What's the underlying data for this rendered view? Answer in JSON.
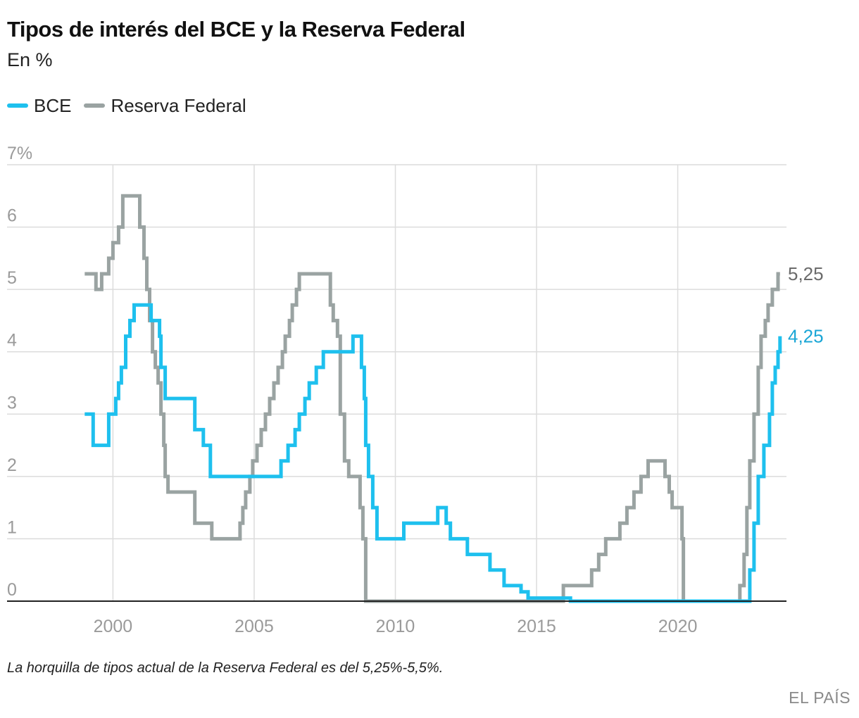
{
  "header": {
    "title": "Tipos de interés del BCE y la Reserva Federal",
    "subtitle": "En %"
  },
  "legend": [
    {
      "label": "BCE",
      "color": "#1ec0ee"
    },
    {
      "label": "Reserva Federal",
      "color": "#9aa3a2"
    }
  ],
  "chart_data": {
    "type": "line",
    "step": true,
    "title": "Tipos de interés del BCE y la Reserva Federal",
    "subtitle": "En %",
    "xlim": [
      1996.25,
      2023.85
    ],
    "ylim": [
      0,
      7
    ],
    "x_ticks": [
      "2000",
      "2005",
      "2010",
      "2015",
      "2020"
    ],
    "x_tick_values": [
      2000,
      2005,
      2010,
      2015,
      2020
    ],
    "y_ticks": [
      "0",
      "1",
      "2",
      "3",
      "4",
      "5",
      "6",
      "7%"
    ],
    "y_tick_values": [
      0,
      1,
      2,
      3,
      4,
      5,
      6,
      7
    ],
    "series": [
      {
        "name": "Reserva Federal",
        "color": "#9aa3a2",
        "end_label": "5,25",
        "label_color": "#6b6b6b",
        "points": [
          [
            1999.0,
            5.25
          ],
          [
            1999.4,
            5.0
          ],
          [
            1999.6,
            5.25
          ],
          [
            1999.85,
            5.5
          ],
          [
            2000.0,
            5.75
          ],
          [
            2000.2,
            6.0
          ],
          [
            2000.35,
            6.5
          ],
          [
            2000.95,
            6.0
          ],
          [
            2001.1,
            5.5
          ],
          [
            2001.2,
            5.0
          ],
          [
            2001.3,
            4.5
          ],
          [
            2001.4,
            4.0
          ],
          [
            2001.5,
            3.75
          ],
          [
            2001.6,
            3.5
          ],
          [
            2001.7,
            3.0
          ],
          [
            2001.8,
            2.5
          ],
          [
            2001.85,
            2.0
          ],
          [
            2001.95,
            1.75
          ],
          [
            2002.9,
            1.25
          ],
          [
            2003.5,
            1.0
          ],
          [
            2004.5,
            1.25
          ],
          [
            2004.6,
            1.5
          ],
          [
            2004.7,
            1.75
          ],
          [
            2004.85,
            2.0
          ],
          [
            2004.95,
            2.25
          ],
          [
            2005.1,
            2.5
          ],
          [
            2005.25,
            2.75
          ],
          [
            2005.4,
            3.0
          ],
          [
            2005.55,
            3.25
          ],
          [
            2005.7,
            3.5
          ],
          [
            2005.85,
            3.75
          ],
          [
            2006.0,
            4.0
          ],
          [
            2006.1,
            4.25
          ],
          [
            2006.25,
            4.5
          ],
          [
            2006.35,
            4.75
          ],
          [
            2006.5,
            5.0
          ],
          [
            2006.6,
            5.25
          ],
          [
            2007.7,
            4.75
          ],
          [
            2007.8,
            4.5
          ],
          [
            2007.95,
            4.25
          ],
          [
            2008.05,
            3.0
          ],
          [
            2008.2,
            2.25
          ],
          [
            2008.35,
            2.0
          ],
          [
            2008.75,
            1.5
          ],
          [
            2008.85,
            1.0
          ],
          [
            2008.95,
            0.0
          ],
          [
            2015.95,
            0.25
          ],
          [
            2016.95,
            0.5
          ],
          [
            2017.2,
            0.75
          ],
          [
            2017.45,
            1.0
          ],
          [
            2017.95,
            1.25
          ],
          [
            2018.2,
            1.5
          ],
          [
            2018.45,
            1.75
          ],
          [
            2018.7,
            2.0
          ],
          [
            2018.95,
            2.25
          ],
          [
            2019.55,
            2.0
          ],
          [
            2019.7,
            1.75
          ],
          [
            2019.8,
            1.5
          ],
          [
            2020.15,
            1.0
          ],
          [
            2020.2,
            0.0
          ],
          [
            2022.2,
            0.25
          ],
          [
            2022.35,
            0.75
          ],
          [
            2022.45,
            1.5
          ],
          [
            2022.55,
            2.25
          ],
          [
            2022.7,
            3.0
          ],
          [
            2022.85,
            3.75
          ],
          [
            2022.95,
            4.25
          ],
          [
            2023.1,
            4.5
          ],
          [
            2023.2,
            4.75
          ],
          [
            2023.35,
            5.0
          ],
          [
            2023.55,
            5.25
          ],
          [
            2023.62,
            5.25
          ]
        ]
      },
      {
        "name": "BCE",
        "color": "#1ec0ee",
        "end_label": "4,25",
        "label_color": "#1aa6d6",
        "points": [
          [
            1999.0,
            3.0
          ],
          [
            1999.3,
            2.5
          ],
          [
            1999.85,
            3.0
          ],
          [
            2000.1,
            3.25
          ],
          [
            2000.2,
            3.5
          ],
          [
            2000.3,
            3.75
          ],
          [
            2000.45,
            4.25
          ],
          [
            2000.6,
            4.5
          ],
          [
            2000.75,
            4.75
          ],
          [
            2001.35,
            4.5
          ],
          [
            2001.65,
            4.25
          ],
          [
            2001.7,
            3.75
          ],
          [
            2001.85,
            3.25
          ],
          [
            2002.9,
            2.75
          ],
          [
            2003.2,
            2.5
          ],
          [
            2003.45,
            2.0
          ],
          [
            2005.95,
            2.25
          ],
          [
            2006.2,
            2.5
          ],
          [
            2006.45,
            2.75
          ],
          [
            2006.6,
            3.0
          ],
          [
            2006.8,
            3.25
          ],
          [
            2006.95,
            3.5
          ],
          [
            2007.2,
            3.75
          ],
          [
            2007.45,
            4.0
          ],
          [
            2008.5,
            4.25
          ],
          [
            2008.8,
            3.75
          ],
          [
            2008.9,
            3.25
          ],
          [
            2008.95,
            2.5
          ],
          [
            2009.05,
            2.0
          ],
          [
            2009.2,
            1.5
          ],
          [
            2009.35,
            1.0
          ],
          [
            2010.3,
            1.25
          ],
          [
            2011.5,
            1.5
          ],
          [
            2011.8,
            1.25
          ],
          [
            2011.95,
            1.0
          ],
          [
            2012.55,
            0.75
          ],
          [
            2013.35,
            0.5
          ],
          [
            2013.85,
            0.25
          ],
          [
            2014.45,
            0.15
          ],
          [
            2014.7,
            0.05
          ],
          [
            2016.2,
            0.0
          ],
          [
            2022.55,
            0.5
          ],
          [
            2022.7,
            1.25
          ],
          [
            2022.85,
            2.0
          ],
          [
            2023.05,
            2.5
          ],
          [
            2023.25,
            3.0
          ],
          [
            2023.35,
            3.5
          ],
          [
            2023.45,
            3.75
          ],
          [
            2023.55,
            4.0
          ],
          [
            2023.62,
            4.25
          ]
        ]
      }
    ]
  },
  "note": "La horquilla de tipos actual de la Reserva Federal es del 5,25%-5,5%.",
  "source": "EL PAÍS"
}
